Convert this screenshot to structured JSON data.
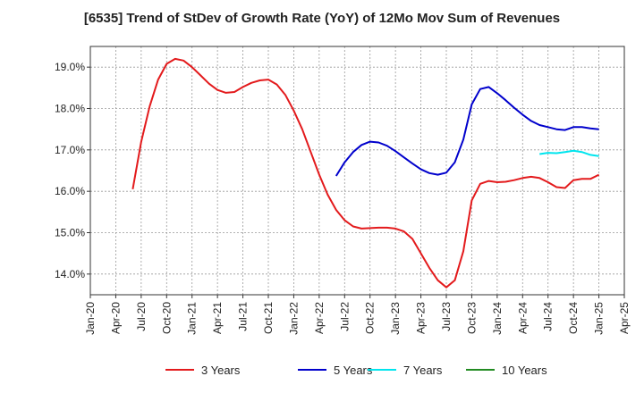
{
  "chart_data": {
    "type": "line",
    "title": "[6535]  Trend of StDev of Growth Rate (YoY) of 12Mo Mov Sum of Revenues",
    "xlabel": "",
    "ylabel": "",
    "ylim": [
      13.5,
      19.5
    ],
    "y_ticks": [
      14.0,
      15.0,
      16.0,
      17.0,
      18.0,
      19.0
    ],
    "y_tick_labels": [
      "14.0%",
      "15.0%",
      "16.0%",
      "17.0%",
      "18.0%",
      "19.0%"
    ],
    "x_tick_labels": [
      "Jan-20",
      "Apr-20",
      "Jul-20",
      "Oct-20",
      "Jan-21",
      "Apr-21",
      "Jul-21",
      "Oct-21",
      "Jan-22",
      "Apr-22",
      "Jul-22",
      "Oct-22",
      "Jan-23",
      "Apr-23",
      "Jul-23",
      "Oct-23",
      "Jan-24",
      "Apr-24",
      "Jul-24",
      "Oct-24",
      "Jan-25",
      "Apr-25"
    ],
    "x_start": "Jan-20",
    "grid": true,
    "legend": "bottom",
    "series": [
      {
        "name": "3 Years",
        "color": "#e31a1c",
        "start_index": 5,
        "values": [
          16.05,
          17.2,
          18.05,
          18.7,
          19.08,
          19.2,
          19.16,
          19.0,
          18.8,
          18.6,
          18.45,
          18.38,
          18.4,
          18.52,
          18.62,
          18.68,
          18.7,
          18.58,
          18.33,
          17.95,
          17.5,
          16.95,
          16.4,
          15.92,
          15.55,
          15.3,
          15.15,
          15.1,
          15.11,
          15.12,
          15.12,
          15.1,
          15.03,
          14.85,
          14.5,
          14.15,
          13.85,
          13.68,
          13.85,
          14.55,
          15.78,
          16.18,
          16.25,
          16.22,
          16.23,
          16.27,
          16.32,
          16.35,
          16.32,
          16.22,
          16.1,
          16.08,
          16.27,
          16.3,
          16.3,
          16.4
        ]
      },
      {
        "name": "5 Years",
        "color": "#0000cc",
        "start_index": 29,
        "values": [
          16.37,
          16.7,
          16.95,
          17.12,
          17.2,
          17.18,
          17.1,
          16.97,
          16.82,
          16.67,
          16.53,
          16.44,
          16.4,
          16.45,
          16.7,
          17.25,
          18.1,
          18.47,
          18.52,
          18.37,
          18.2,
          18.02,
          17.85,
          17.7,
          17.6,
          17.55,
          17.5,
          17.48,
          17.55,
          17.55,
          17.52,
          17.5
        ]
      },
      {
        "name": "7 Years",
        "color": "#00e5ee",
        "start_index": 53,
        "values": [
          16.9,
          16.93,
          16.92,
          16.95,
          16.98,
          16.95,
          16.88,
          16.85
        ]
      },
      {
        "name": "10 Years",
        "color": "#228b22",
        "start_index": 0,
        "values": []
      }
    ]
  }
}
